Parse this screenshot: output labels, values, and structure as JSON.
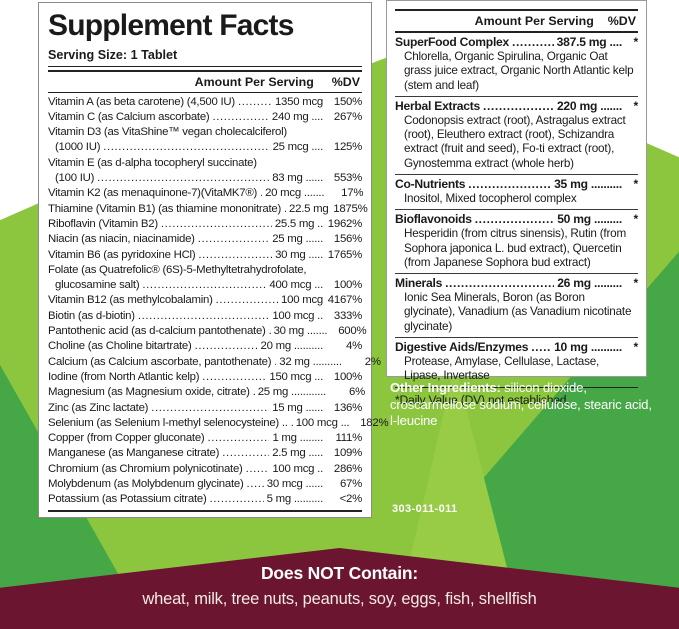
{
  "left_panel": {
    "title": "Supplement Facts",
    "serving_size": "Serving Size: 1 Tablet",
    "header": {
      "amount": "Amount Per Serving",
      "dv": "%DV"
    },
    "rows": [
      {
        "label": "Vitamin A (as beta carotene) (4,500 IU)",
        "amount": "1350 mcg",
        "dv": "150%"
      },
      {
        "label": "Vitamin C (as Calcium ascorbate)",
        "amount": "240 mg ....",
        "dv": "267%"
      },
      {
        "label": "Vitamin D3  (as VitaShine™ vegan cholecalciferol)",
        "label2": "(1000 IU)",
        "amount": "25 mcg ....",
        "dv": "125%"
      },
      {
        "label": "Vitamin E (as d-alpha tocopheryl succinate)",
        "label2": "(100 IU)",
        "amount": "83 mg ......",
        "dv": "553%"
      },
      {
        "label": "Vitamin K2 (as menaquinone-7)(VitaMK7®)",
        "amount": "20 mcg .......",
        "dv": "17%"
      },
      {
        "label": "Thiamine (Vitamin B1) (as thiamine mononitrate)",
        "amount": "22.5 mg",
        "dv": "1875%"
      },
      {
        "label": "Riboflavin (Vitamin B2)",
        "amount": "25.5 mg ..",
        "dv": "1962%"
      },
      {
        "label": "Niacin (as niacin, niacinamide)",
        "amount": "25 mg ......",
        "dv": "156%"
      },
      {
        "label": "Vitamin B6 (as pyridoxine HCl)",
        "amount": "30 mg .....",
        "dv": "1765%"
      },
      {
        "label": "Folate (as Quatrefolic® (6S)-5-Methyltetrahydrofolate,",
        "label2": "glucosamine salt)",
        "amount": "400 mcg ...",
        "dv": "100%"
      },
      {
        "label": "Vitamin B12 (as methylcobalamin)",
        "amount": "100 mcg",
        "dv": "4167%"
      },
      {
        "label": "Biotin (as d-biotin)",
        "amount": "100 mcg ..",
        "dv": "333%"
      },
      {
        "label": "Pantothenic acid (as d-calcium pantothenate)",
        "amount": "30 mg .......",
        "dv": "600%"
      },
      {
        "label": "Choline (as Choline bitartrate)",
        "amount": "20 mg ..........",
        "dv": "4%"
      },
      {
        "label": "Calcium (as Calcium ascorbate, pantothenate)",
        "amount": "32 mg ..........",
        "dv": "2%"
      },
      {
        "label": "Iodine (from North Atlantic kelp)",
        "amount": "150 mcg ...",
        "dv": "100%"
      },
      {
        "label": "Magnesium (as Magnesium oxide, citrate)",
        "amount": "25 mg ............",
        "dv": "6%"
      },
      {
        "label": "Zinc (as Zinc lactate)",
        "amount": "15 mg ......",
        "dv": "136%"
      },
      {
        "label": "Selenium (as Selenium l-methyl selenocysteine) ..",
        "amount": "100 mcg ...",
        "dv": "182%"
      },
      {
        "label": "Copper (from Copper gluconate)",
        "amount": "1 mg ........",
        "dv": "111%"
      },
      {
        "label": "Manganese (as Manganese citrate)",
        "amount": "2.5 mg .....",
        "dv": "109%"
      },
      {
        "label": "Chromium (as Chromium polynicotinate)",
        "amount": "100 mcg ..",
        "dv": "286%"
      },
      {
        "label": "Molybdenum (as Molybdenum glycinate)",
        "amount": "30 mcg ......",
        "dv": "67%"
      },
      {
        "label": "Potassium (as Potassium citrate)",
        "amount": "5 mg ..........",
        "dv": "<2%"
      }
    ]
  },
  "right_panel": {
    "header": {
      "amount": "Amount Per Serving",
      "dv": "%DV"
    },
    "sections": [
      {
        "name": "SuperFood Complex",
        "amount": "387.5 mg ....",
        "dv": "*",
        "desc": "Chlorella, Organic Spirulina, Organic Oat grass juice extract, Organic North Atlantic kelp (stem and leaf)"
      },
      {
        "name": "Herbal Extracts",
        "amount": "220 mg .......",
        "dv": "*",
        "desc": "Codonopsis extract (root), Astragalus extract (root), Eleuthero extract (root), Schizandra extract (fruit and seed), Fo-ti extract (root), Gynostemma extract (whole herb)"
      },
      {
        "name": "Co-Nutrients",
        "amount": "35 mg ..........",
        "dv": "*",
        "desc": "Inositol, Mixed tocopherol complex"
      },
      {
        "name": "Bioflavonoids",
        "amount": "50 mg .........",
        "dv": "*",
        "desc": "Hesperidin (from citrus sinensis), Rutin (from Sophora japonica L. bud extract), Quercetin (from Japanese Sophora bud extract)"
      },
      {
        "name": "Minerals",
        "amount": "26 mg .........",
        "dv": "*",
        "desc": "Ionic Sea Minerals, Boron (as Boron glycinate), Vanadium (as Vanadium nicotinate glycinate)"
      },
      {
        "name": "Digestive Aids/Enzymes",
        "amount": "10 mg ..........",
        "dv": "*",
        "desc": "Protease, Amylase, Cellulase, Lactase, Lipase, Invertase"
      }
    ],
    "footnote": "*Daily Value (DV) not established."
  },
  "other_ingredients": {
    "label": "Other Ingredients:",
    "text": " silicon dioxide, croscarmellose sodium, cellulose, stearic acid, l-leucine"
  },
  "product_code": "303-011-011",
  "banner": {
    "title": "Does NOT Contain:",
    "items": "wheat, milk, tree nuts, peanuts, soy, eggs, fish, shellfish"
  },
  "colors": {
    "light_green": "#8cc63f",
    "mid_green": "#46a747",
    "maroon": "#6c1530",
    "text": "#1a1a1a",
    "white_text": "#ffffff"
  }
}
